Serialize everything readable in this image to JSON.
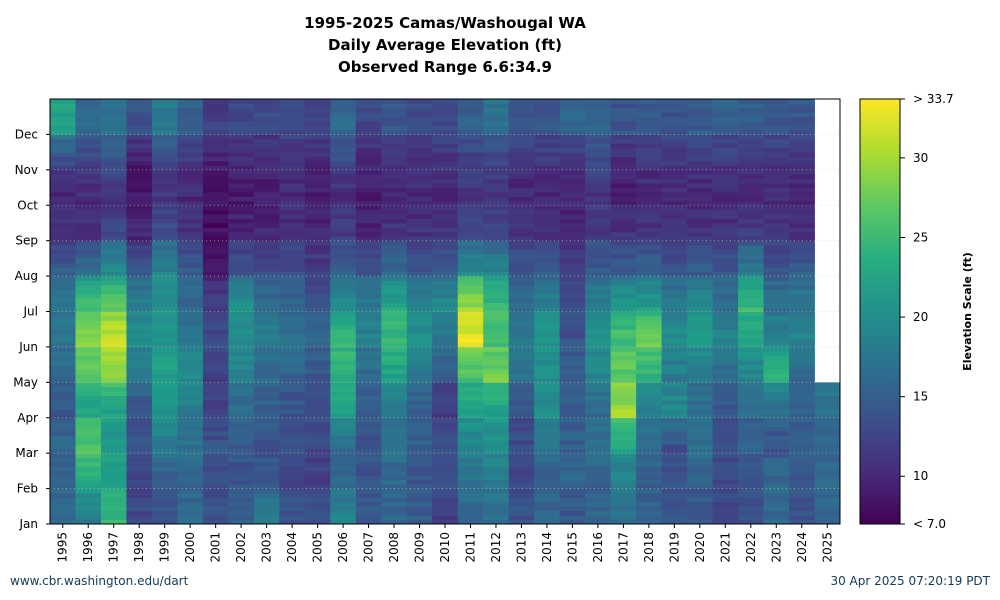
{
  "chart_data": {
    "type": "heatmap",
    "title": "1995-2025 Camas/Washougal WA",
    "subtitle_lines": [
      "Daily Average Elevation (ft)",
      "Observed Range 6.6:34.9"
    ],
    "xlabel": "",
    "ylabel": "",
    "colorbar_label": "Elevation Scale (ft)",
    "colormap": "viridis",
    "years": [
      "1995",
      "1996",
      "1997",
      "1998",
      "1999",
      "2000",
      "2001",
      "2002",
      "2003",
      "2004",
      "2005",
      "2006",
      "2007",
      "2008",
      "2009",
      "2010",
      "2011",
      "2012",
      "2013",
      "2014",
      "2015",
      "2016",
      "2017",
      "2018",
      "2019",
      "2020",
      "2021",
      "2022",
      "2023",
      "2024",
      "2025"
    ],
    "month_ticks": [
      "Jan",
      "Feb",
      "Mar",
      "Apr",
      "May",
      "Jun",
      "Jul",
      "Aug",
      "Sep",
      "Oct",
      "Nov",
      "Dec"
    ],
    "colorbar_ticks": [
      "10",
      "15",
      "20",
      "25",
      "30"
    ],
    "colorbar_tick_values": [
      10,
      15,
      20,
      25,
      30
    ],
    "colorbar_min_label": "< 7.0",
    "colorbar_max_label": "> 33.7",
    "value_range": [
      7.0,
      33.7
    ],
    "grid": true,
    "months": [
      "Jan",
      "Feb",
      "Mar",
      "Apr",
      "May",
      "Jun",
      "Jul",
      "Aug",
      "Sep",
      "Oct",
      "Nov",
      "Dec"
    ],
    "monthly_values": [
      [
        16,
        15,
        16,
        14,
        16,
        17,
        18,
        15,
        11,
        10,
        12,
        22
      ],
      [
        18,
        23,
        27,
        22,
        26,
        29,
        26,
        17,
        11,
        10,
        12,
        16
      ],
      [
        25,
        22,
        21,
        22,
        28,
        32,
        27,
        20,
        13,
        11,
        14,
        17
      ],
      [
        13,
        12,
        14,
        14,
        17,
        20,
        19,
        14,
        10,
        9,
        9,
        14
      ],
      [
        14,
        15,
        18,
        21,
        22,
        21,
        20,
        19,
        14,
        11,
        12,
        18
      ],
      [
        16,
        16,
        17,
        18,
        20,
        18,
        16,
        15,
        11,
        10,
        11,
        15
      ],
      [
        14,
        13,
        14,
        12,
        12,
        13,
        12,
        9,
        8,
        8,
        9,
        12
      ],
      [
        15,
        14,
        14,
        16,
        19,
        20,
        21,
        14,
        10,
        9,
        10,
        13
      ],
      [
        18,
        15,
        14,
        15,
        16,
        18,
        17,
        13,
        10,
        9,
        10,
        13
      ],
      [
        14,
        13,
        14,
        14,
        15,
        17,
        16,
        13,
        11,
        10,
        11,
        13
      ],
      [
        14,
        12,
        13,
        13,
        14,
        16,
        14,
        12,
        10,
        9,
        10,
        13
      ],
      [
        19,
        16,
        16,
        22,
        24,
        25,
        20,
        15,
        12,
        10,
        13,
        16
      ],
      [
        15,
        14,
        14,
        15,
        16,
        19,
        18,
        14,
        10,
        9,
        10,
        13
      ],
      [
        16,
        16,
        17,
        18,
        22,
        25,
        23,
        16,
        11,
        10,
        11,
        14
      ],
      [
        15,
        14,
        15,
        15,
        17,
        21,
        19,
        14,
        11,
        10,
        11,
        13
      ],
      [
        12,
        13,
        14,
        11,
        15,
        17,
        20,
        15,
        11,
        10,
        11,
        13
      ],
      [
        16,
        17,
        19,
        22,
        25,
        33,
        30,
        20,
        13,
        11,
        12,
        15
      ],
      [
        17,
        18,
        20,
        22,
        28,
        26,
        25,
        19,
        13,
        11,
        12,
        17
      ],
      [
        14,
        13,
        13,
        14,
        17,
        18,
        17,
        14,
        11,
        10,
        11,
        14
      ],
      [
        16,
        15,
        17,
        20,
        20,
        21,
        19,
        15,
        11,
        10,
        11,
        14
      ],
      [
        14,
        16,
        15,
        15,
        15,
        14,
        13,
        12,
        10,
        10,
        11,
        16
      ],
      [
        16,
        15,
        17,
        16,
        19,
        20,
        19,
        15,
        12,
        11,
        13,
        15
      ],
      [
        17,
        18,
        22,
        30,
        27,
        26,
        22,
        15,
        11,
        9,
        10,
        14
      ],
      [
        15,
        15,
        16,
        18,
        24,
        28,
        22,
        16,
        11,
        10,
        11,
        14
      ],
      [
        14,
        14,
        13,
        20,
        18,
        20,
        18,
        14,
        11,
        10,
        11,
        14
      ],
      [
        14,
        15,
        17,
        16,
        18,
        21,
        20,
        15,
        11,
        10,
        11,
        15
      ],
      [
        13,
        13,
        13,
        14,
        16,
        19,
        17,
        14,
        11,
        10,
        11,
        15
      ],
      [
        14,
        14,
        15,
        16,
        19,
        22,
        25,
        18,
        12,
        10,
        11,
        15
      ],
      [
        16,
        16,
        14,
        16,
        24,
        19,
        17,
        14,
        11,
        10,
        11,
        14
      ],
      [
        14,
        14,
        15,
        15,
        16,
        19,
        18,
        15,
        11,
        10,
        11,
        14
      ],
      [
        16,
        16,
        15,
        17,
        null,
        null,
        null,
        null,
        null,
        null,
        null,
        null
      ]
    ]
  },
  "footer": {
    "left": "www.cbr.washington.edu/dart",
    "right": "30 Apr 2025 07:20:19 PDT"
  }
}
